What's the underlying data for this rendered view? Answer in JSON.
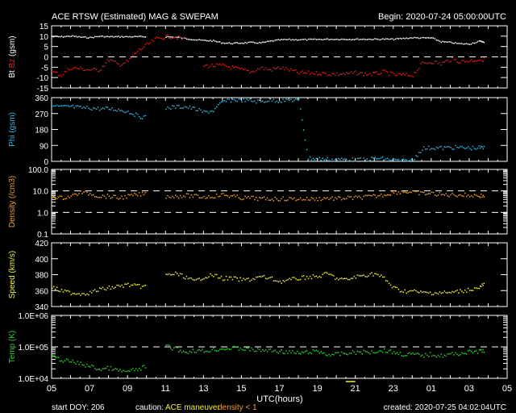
{
  "header": {
    "title": "ACE RTSW (Estimated) MAG & SWEPAM",
    "begin": "Begin: 2020-07-24 05:00:00UTC"
  },
  "footer": {
    "start_doy": "start DOY: 206",
    "caution": "caution:",
    "maneuver": "ACE maneuver",
    "density_note": "density < 1",
    "created": "created: 2020-07-25 04:02:04UTC",
    "xlabel": "UTC(hours)"
  },
  "colors": {
    "bt": "#ffffff",
    "bz": "#e02020",
    "phi": "#30b8e0",
    "density": "#f0a030",
    "speed": "#f0f040",
    "temp": "#30d030",
    "maneuver": "#f0f040"
  },
  "chart_data": [
    {
      "type": "scatter",
      "ylabel_parts": [
        "Bt",
        "Bz",
        "(gsm)"
      ],
      "scale": "linear",
      "ylim": [
        -15,
        15
      ],
      "yticks": [
        15,
        10,
        5,
        0,
        -5,
        -10,
        -15
      ],
      "ytick_labels": [
        "15",
        "10",
        "5",
        "0",
        "-5",
        "-10",
        "-15"
      ],
      "dashed": [
        0
      ],
      "series": [
        {
          "name": "Bt",
          "color": "#ffffff",
          "x": [
            0,
            0.5,
            1,
            1.5,
            2,
            2.5,
            3,
            3.5,
            4,
            4.5,
            5,
            5.5,
            6,
            6.5,
            7,
            7.5,
            8,
            8.5,
            9,
            9.5,
            10,
            10.5,
            11,
            11.5,
            12,
            12.5,
            13,
            13.5,
            14,
            14.5,
            15,
            15.5,
            16,
            16.5,
            17,
            17.5,
            18,
            18.5,
            19,
            19.5,
            20,
            20.5,
            21,
            21.5,
            22,
            22.5,
            22.8
          ],
          "y": [
            10,
            10,
            10.3,
            9.8,
            9.6,
            10.2,
            10,
            10,
            10,
            10,
            10,
            null,
            10,
            9.8,
            9.2,
            8.6,
            8.2,
            8,
            7,
            6.8,
            7,
            7.2,
            7,
            7.8,
            8.5,
            8.6,
            8.6,
            8.6,
            8.7,
            8.8,
            8.8,
            8.8,
            8.8,
            8.8,
            8.8,
            8.8,
            8.8,
            9.2,
            9.5,
            9.4,
            9.4,
            7.6,
            7.2,
            6.6,
            6.5,
            7.8,
            7.5
          ]
        },
        {
          "name": "Bz",
          "color": "#e02020",
          "x": [
            0,
            0.5,
            1,
            1.5,
            2,
            2.5,
            3,
            3.5,
            4,
            4.5,
            5,
            5.5,
            6,
            6.5,
            7,
            7.5,
            8,
            8.5,
            9,
            9.5,
            10,
            10.5,
            11,
            11.5,
            12,
            12.5,
            13,
            13.5,
            14,
            14.5,
            15,
            15.5,
            16,
            16.5,
            17,
            17.5,
            18,
            18.5,
            19,
            19.5,
            20,
            20.5,
            21,
            21.5,
            22,
            22.5,
            22.8
          ],
          "y": [
            -7,
            -8.5,
            -5,
            -5.5,
            -6,
            -6,
            -1,
            -3.5,
            -2,
            3,
            6,
            9,
            10,
            10,
            8.5,
            null,
            -4,
            -4,
            -4,
            -5,
            -6,
            -7,
            -5,
            -6,
            -5,
            -6,
            -7.5,
            -7.5,
            -7.5,
            -8,
            -8,
            -8,
            -7.5,
            -8,
            -8,
            -7,
            -8.5,
            -8.5,
            -8.5,
            -3,
            -2,
            -3,
            -1,
            -2,
            -1.5,
            -1,
            -1
          ]
        }
      ]
    },
    {
      "type": "scatter",
      "ylabel_parts": [
        "Phi",
        "(gsm)"
      ],
      "scale": "linear",
      "ylim": [
        0,
        360
      ],
      "yticks": [
        360,
        270,
        180,
        90,
        0
      ],
      "ytick_labels": [
        "360",
        "270",
        "180",
        "90",
        "0"
      ],
      "dashed": [],
      "series": [
        {
          "name": "Phi",
          "color": "#30b8e0",
          "x": [
            0,
            0.5,
            1,
            1.5,
            2,
            2.5,
            3,
            3.5,
            4,
            4.5,
            5,
            5.5,
            6,
            6.5,
            7,
            7.5,
            8,
            8.5,
            9,
            9.5,
            10,
            10.5,
            11,
            11.5,
            12,
            12.5,
            13,
            13.5,
            14,
            14.5,
            15,
            15.5,
            16,
            16.5,
            17,
            17.5,
            18,
            18.5,
            19,
            19.5,
            20,
            20.5,
            21,
            21.5,
            22,
            22.5,
            22.8
          ],
          "y": [
            315,
            310,
            312,
            305,
            305,
            300,
            300,
            295,
            285,
            260,
            250,
            null,
            305,
            310,
            312,
            300,
            280,
            290,
            340,
            350,
            350,
            345,
            340,
            350,
            345,
            350,
            350,
            20,
            18,
            15,
            12,
            15,
            12,
            10,
            20,
            18,
            10,
            5,
            8,
            75,
            80,
            78,
            82,
            80,
            78,
            80,
            78
          ]
        }
      ]
    },
    {
      "type": "scatter",
      "ylabel_parts": [
        "Density",
        "(/cm3)"
      ],
      "scale": "log",
      "ylim": [
        0.1,
        100
      ],
      "yticks": [
        100,
        10,
        1,
        0.1
      ],
      "ytick_labels": [
        "100.0",
        "10.0",
        "1.0",
        "0.1"
      ],
      "dashed": [
        10,
        1
      ],
      "series": [
        {
          "name": "Density",
          "color": "#f0a030",
          "x": [
            0,
            0.5,
            1,
            1.5,
            2,
            2.5,
            3,
            3.5,
            4,
            4.5,
            5,
            5.5,
            6,
            6.5,
            7,
            7.5,
            8,
            8.5,
            9,
            9.5,
            10,
            10.5,
            11,
            11.5,
            12,
            12.5,
            13,
            13.5,
            14,
            14.5,
            15,
            15.5,
            16,
            16.5,
            17,
            17.5,
            18,
            18.5,
            19,
            19.5,
            20,
            20.5,
            21,
            21.5,
            22,
            22.5,
            22.8
          ],
          "y": [
            6,
            5,
            6,
            9,
            8,
            6,
            6,
            5,
            6,
            7,
            8,
            null,
            6,
            6,
            6.5,
            6,
            5.5,
            6,
            7,
            6,
            5,
            5,
            4.5,
            4.5,
            4.5,
            4.5,
            4.5,
            4.5,
            4.5,
            5,
            4.5,
            5,
            5,
            5.5,
            6,
            7,
            9,
            10,
            9,
            8,
            8,
            7,
            7,
            7,
            6.5,
            6.5,
            6
          ]
        }
      ]
    },
    {
      "type": "scatter",
      "ylabel_parts": [
        "Speed",
        "(km/s)"
      ],
      "scale": "linear",
      "ylim": [
        340,
        420
      ],
      "yticks": [
        420,
        400,
        380,
        360,
        340
      ],
      "ytick_labels": [
        "420",
        "400",
        "380",
        "360",
        "340"
      ],
      "dashed": [],
      "series": [
        {
          "name": "Speed",
          "color": "#f0f040",
          "x": [
            0,
            0.5,
            1,
            1.5,
            2,
            2.5,
            3,
            3.5,
            4,
            4.5,
            5,
            5.5,
            6,
            6.5,
            7,
            7.5,
            8,
            8.5,
            9,
            9.5,
            10,
            10.5,
            11,
            11.5,
            12,
            12.5,
            13,
            13.5,
            14,
            14.5,
            15,
            15.5,
            16,
            16.5,
            17,
            17.5,
            18,
            18.5,
            19,
            19.5,
            20,
            20.5,
            21,
            21.5,
            22,
            22.5,
            22.8
          ],
          "y": [
            365,
            360,
            358,
            357,
            358,
            362,
            364,
            366,
            368,
            366,
            366,
            null,
            380,
            382,
            378,
            372,
            378,
            380,
            376,
            376,
            374,
            375,
            378,
            376,
            372,
            374,
            376,
            378,
            378,
            382,
            376,
            374,
            378,
            380,
            382,
            376,
            364,
            360,
            360,
            358,
            358,
            358,
            358,
            360,
            362,
            364,
            370
          ]
        }
      ]
    },
    {
      "type": "scatter",
      "ylabel_parts": [
        "Temp",
        "(K)"
      ],
      "scale": "log",
      "ylim": [
        10000,
        1000000
      ],
      "yticks": [
        1000000,
        100000,
        10000
      ],
      "ytick_labels": [
        "1.0E+06",
        "1.0E+05",
        "1.0E+04"
      ],
      "dashed": [
        100000
      ],
      "series": [
        {
          "name": "Temp",
          "color": "#30d030",
          "x": [
            0,
            0.5,
            1,
            1.5,
            2,
            2.5,
            3,
            3.5,
            4,
            4.5,
            5,
            5.5,
            6,
            6.5,
            7,
            7.5,
            8,
            8.5,
            9,
            9.5,
            10,
            10.5,
            11,
            11.5,
            12,
            12.5,
            13,
            13.5,
            14,
            14.5,
            15,
            15.5,
            16,
            16.5,
            17,
            17.5,
            18,
            18.5,
            19,
            19.5,
            20,
            20.5,
            21,
            21.5,
            22,
            22.5,
            22.8
          ],
          "y": [
            50000,
            40000,
            35000,
            30000,
            25000,
            20000,
            22000,
            18000,
            17000,
            20000,
            25000,
            null,
            110000,
            90000,
            70000,
            80000,
            75000,
            85000,
            90000,
            95000,
            90000,
            85000,
            80000,
            80000,
            75000,
            70000,
            65000,
            70000,
            75000,
            60000,
            60000,
            65000,
            70000,
            70000,
            75000,
            80000,
            70000,
            60000,
            60000,
            55000,
            60000,
            55000,
            60000,
            65000,
            70000,
            75000,
            80000
          ]
        }
      ]
    }
  ],
  "x_axis": {
    "range_hours": [
      0,
      24
    ],
    "tick_labels": [
      "05",
      "07",
      "09",
      "11",
      "13",
      "15",
      "17",
      "19",
      "21",
      "23",
      "01",
      "03",
      "05"
    ],
    "maneuver_hours": [
      15.5,
      16
    ]
  }
}
